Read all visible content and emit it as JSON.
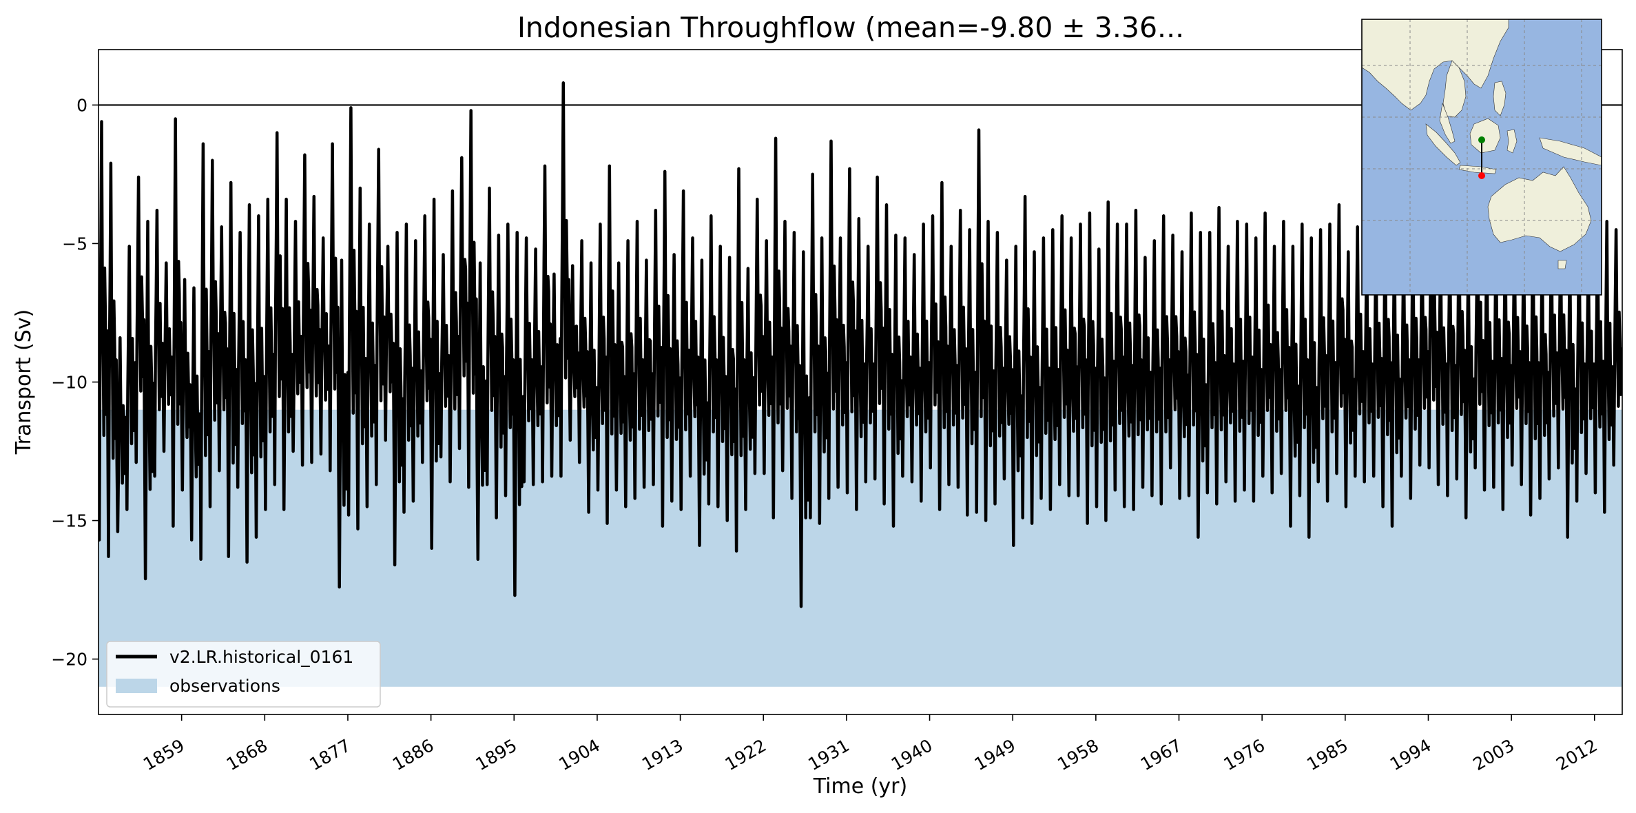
{
  "chart_data": {
    "type": "line",
    "title": "Indonesian Throughflow (mean=-9.80 ± 3.36...",
    "xlabel": "Time (yr)",
    "ylabel": "Transport (Sv)",
    "xlim": [
      1850,
      2015
    ],
    "ylim": [
      -22,
      2
    ],
    "x_ticks": [
      "1859",
      "1868",
      "1877",
      "1886",
      "1895",
      "1904",
      "1913",
      "1922",
      "1931",
      "1940",
      "1949",
      "1958",
      "1967",
      "1976",
      "1985",
      "1994",
      "2003",
      "2012"
    ],
    "y_ticks": [
      {
        "value": 0,
        "label": "0"
      },
      {
        "value": -5,
        "label": "−5"
      },
      {
        "value": -10,
        "label": "−10"
      },
      {
        "value": -15,
        "label": "−15"
      },
      {
        "value": -20,
        "label": "−20"
      }
    ],
    "reference_line": {
      "y": 0,
      "color": "#000000"
    },
    "observations_band": {
      "name": "observations",
      "y_min": -21,
      "y_max": -11,
      "color": "#bcd6e8"
    },
    "series": [
      {
        "name": "v2.LR.historical_0161",
        "color": "#000000",
        "note_sampling": "monthly",
        "x_start": 1850.0,
        "x_step": 0.0833,
        "annual_minima": [
          -15.7,
          -16.3,
          -15.4,
          -14.6,
          -12.9,
          -17.1,
          -13.4,
          -12.5,
          -15.2,
          -13.9,
          -15.7,
          -16.4,
          -14.5,
          -13.2,
          -16.3,
          -13.8,
          -16.5,
          -15.6,
          -14.6,
          -13.7,
          -14.6,
          -12.5,
          -13.0,
          -12.9,
          -12.6,
          -13.2,
          -17.4,
          -14.8,
          -15.3,
          -14.5,
          -13.7,
          -12.1,
          -16.6,
          -14.7,
          -14.3,
          -12.9,
          -16.0,
          -12.7,
          -13.6,
          -12.4,
          -13.8,
          -16.4,
          -13.7,
          -14.9,
          -14.1,
          -17.7,
          -13.6,
          -13.7,
          -13.6,
          -13.4,
          -13.4,
          -12.1,
          -12.9,
          -14.7,
          -13.9,
          -15.1,
          -13.9,
          -14.5,
          -14.2,
          -13.8,
          -13.7,
          -15.2,
          -14.3,
          -14.6,
          -13.4,
          -15.9,
          -14.4,
          -14.5,
          -15.0,
          -16.1,
          -14.6,
          -13.3,
          -13.3,
          -14.9,
          -13.2,
          -14.2,
          -18.1,
          -14.9,
          -15.1,
          -14.2,
          -13.8,
          -14.0,
          -14.6,
          -13.6,
          -13.5,
          -14.4,
          -15.2,
          -13.4,
          -13.6,
          -14.3,
          -13.1,
          -14.6,
          -13.7,
          -13.8,
          -14.8,
          -14.7,
          -15.0,
          -14.4,
          -13.5,
          -15.9,
          -14.9,
          -15.1,
          -14.2,
          -14.6,
          -13.7,
          -14.1,
          -14.1,
          -15.1,
          -14.5,
          -15.0,
          -13.9,
          -14.5,
          -14.6,
          -13.8,
          -14.1,
          -14.4,
          -13.1,
          -14.2,
          -14.1,
          -15.6,
          -14.0,
          -14.4,
          -13.6,
          -14.3,
          -13.9,
          -14.3,
          -13.4,
          -14.0,
          -13.3,
          -15.2,
          -14.1,
          -15.6,
          -13.6,
          -14.3,
          -13.3,
          -14.5,
          -13.4,
          -13.6,
          -13.4,
          -14.5,
          -15.2,
          -13.4,
          -14.2,
          -13.0,
          -13.1,
          -13.7,
          -14.1,
          -13.5,
          -14.9,
          -13.1,
          -13.9,
          -13.8,
          -14.6,
          -13.0,
          -13.7,
          -14.8,
          -14.2,
          -13.5,
          -13.1,
          -15.6,
          -14.3,
          -13.3,
          -14.0,
          -14.7,
          -13.0
        ],
        "annual_maxima": [
          -0.6,
          -2.1,
          -8.4,
          -5.1,
          -2.6,
          -4.2,
          -3.8,
          -5.7,
          -0.5,
          -6.3,
          -6.6,
          -1.4,
          -2.0,
          -4.4,
          -2.8,
          -4.6,
          -3.6,
          -4.0,
          -3.4,
          -1.0,
          -3.4,
          -4.2,
          -1.8,
          -3.3,
          -4.8,
          -1.4,
          -5.6,
          -0.1,
          -3.0,
          -4.3,
          -1.6,
          -5.1,
          -4.6,
          -4.3,
          -4.9,
          -4.0,
          -3.4,
          -5.4,
          -3.1,
          -1.9,
          -0.2,
          -5.7,
          -3.0,
          -4.7,
          -4.3,
          -4.6,
          -4.8,
          -5.2,
          -2.2,
          -6.1,
          0.8,
          -5.8,
          -4.9,
          -5.7,
          -4.3,
          -2.2,
          -5.7,
          -4.9,
          -4.2,
          -5.6,
          -3.8,
          -2.4,
          -5.4,
          -3.1,
          -4.8,
          -5.6,
          -4.0,
          -5.1,
          -5.5,
          -2.3,
          -5.9,
          -3.4,
          -4.9,
          -1.2,
          -4.2,
          -4.6,
          -5.3,
          -2.5,
          -4.8,
          -1.3,
          -4.8,
          -2.3,
          -4.1,
          -5.1,
          -2.6,
          -3.6,
          -4.7,
          -4.8,
          -5.4,
          -4.3,
          -4.0,
          -2.8,
          -5.1,
          -3.8,
          -4.5,
          -0.9,
          -4.2,
          -4.6,
          -5.6,
          -5.1,
          -3.3,
          -5.3,
          -4.8,
          -4.5,
          -4.0,
          -4.8,
          -4.3,
          -3.9,
          -5.2,
          -3.5,
          -4.3,
          -4.3,
          -3.8,
          -5.5,
          -4.9,
          -4.0,
          -4.7,
          -5.3,
          -3.9,
          -4.6,
          -4.6,
          -3.7,
          -5.1,
          -4.2,
          -4.3,
          -4.8,
          -3.9,
          -5.1,
          -4.2,
          -5.1,
          -4.3,
          -4.8,
          -4.5,
          -4.3,
          -3.6,
          -5.3,
          -4.4,
          -5.1,
          -4.9,
          -4.1,
          -4.6,
          -5.0,
          -4.2,
          -4.8,
          -3.3,
          -5.0,
          -4.7,
          -4.2,
          -5.4,
          -3.9,
          -4.6,
          -4.5,
          -4.2,
          -4.8,
          -4.9,
          -3.8,
          -5.1,
          -4.4,
          -4.6,
          -4.9,
          -4.4,
          -5.4,
          -4.5,
          -4.2,
          -4.5
        ]
      }
    ],
    "legend": {
      "placement": "lower-left",
      "entries": [
        "v2.LR.historical_0161",
        "observations"
      ]
    },
    "grid": false,
    "inset_map": {
      "placement": "top-right",
      "region": "Indian Ocean / Maritime Continent",
      "ocean_color": "#97b6e1",
      "land_color": "#efefdb",
      "section_start_color": "#008000",
      "section_end_color": "#ff0000"
    }
  }
}
